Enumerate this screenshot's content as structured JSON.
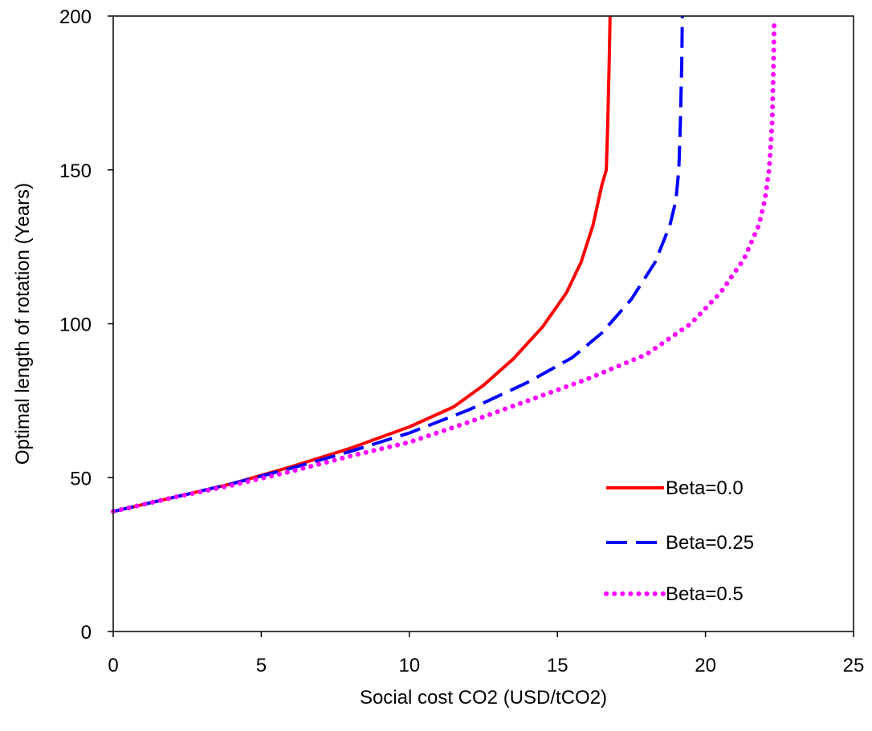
{
  "chart_data": {
    "type": "line",
    "title": "",
    "xlabel": "Social cost CO2 (USD/tCO2)",
    "ylabel": "Optimal length of rotation (Years)",
    "xlim": [
      0,
      25
    ],
    "ylim": [
      0,
      200
    ],
    "x_ticks": [
      "0",
      "5",
      "10",
      "15",
      "20",
      "25"
    ],
    "y_ticks": [
      "0",
      "50",
      "100",
      "150",
      "200"
    ],
    "grid": false,
    "legend_position": "bottom-right",
    "series": [
      {
        "name": "Beta=0.0",
        "color": "#ff0000",
        "style": "solid",
        "points": [
          [
            0,
            39
          ],
          [
            2,
            43.5
          ],
          [
            4,
            48
          ],
          [
            6,
            53.5
          ],
          [
            8,
            59.5
          ],
          [
            10,
            66.5
          ],
          [
            11.5,
            73
          ],
          [
            12.5,
            80
          ],
          [
            13.5,
            88.5
          ],
          [
            14.5,
            99
          ],
          [
            15.3,
            110
          ],
          [
            15.8,
            120
          ],
          [
            16.2,
            132
          ],
          [
            16.5,
            145
          ],
          [
            16.65,
            150
          ],
          [
            16.7,
            165
          ],
          [
            16.75,
            185
          ],
          [
            16.78,
            200
          ]
        ]
      },
      {
        "name": "Beta=0.25",
        "color": "#0000ff",
        "style": "dashed",
        "points": [
          [
            0,
            39
          ],
          [
            2,
            43.5
          ],
          [
            4,
            48
          ],
          [
            6,
            53
          ],
          [
            8,
            58.5
          ],
          [
            10,
            64.5
          ],
          [
            12,
            72
          ],
          [
            14,
            81
          ],
          [
            15.5,
            89
          ],
          [
            16.5,
            97
          ],
          [
            17.5,
            108
          ],
          [
            18.3,
            120
          ],
          [
            18.8,
            132
          ],
          [
            19.0,
            140
          ],
          [
            19.1,
            150
          ],
          [
            19.15,
            165
          ],
          [
            19.2,
            185
          ],
          [
            19.22,
            200
          ]
        ]
      },
      {
        "name": "Beta=0.5",
        "color": "#ff00ff",
        "style": "dotted",
        "points": [
          [
            0,
            39
          ],
          [
            2,
            43.5
          ],
          [
            4,
            47.5
          ],
          [
            6,
            52
          ],
          [
            8,
            57
          ],
          [
            10,
            61.5
          ],
          [
            12,
            68
          ],
          [
            14,
            75
          ],
          [
            16,
            82
          ],
          [
            18,
            90
          ],
          [
            19.5,
            100
          ],
          [
            20.5,
            110
          ],
          [
            21.3,
            121
          ],
          [
            21.8,
            132
          ],
          [
            22.0,
            140
          ],
          [
            22.15,
            150
          ],
          [
            22.25,
            165
          ],
          [
            22.3,
            185
          ],
          [
            22.32,
            198
          ]
        ]
      }
    ]
  }
}
